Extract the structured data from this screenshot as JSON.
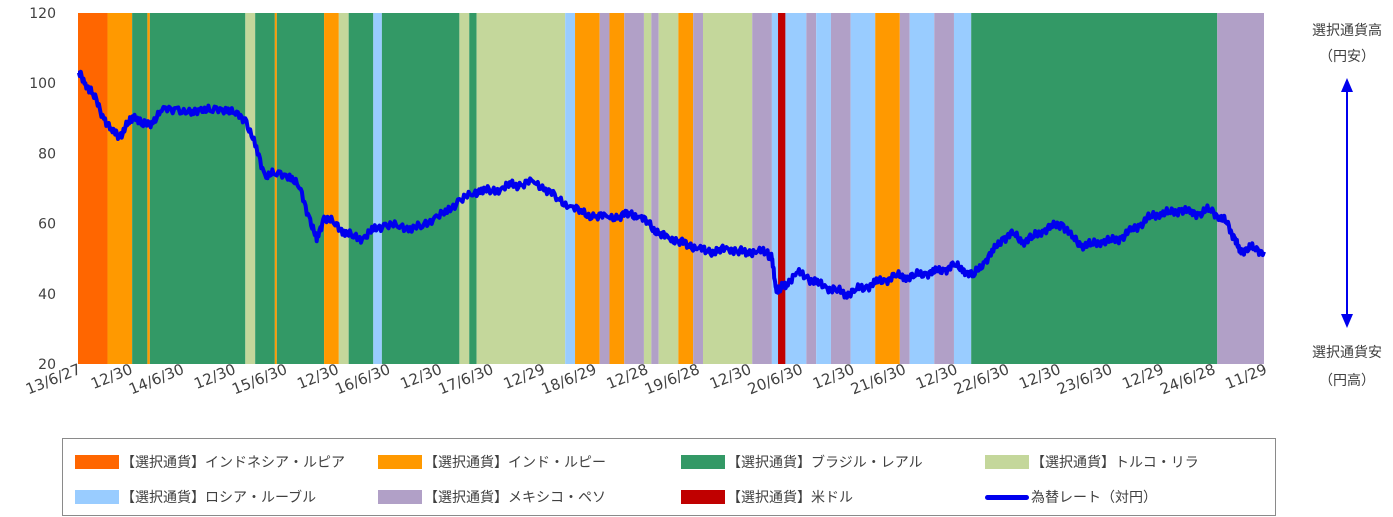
{
  "chart_data": {
    "type": "area",
    "ylim": [
      20,
      120
    ],
    "yticks": [
      20,
      40,
      60,
      80,
      100,
      120
    ],
    "x_tick_labels": [
      "13/6/27",
      "12/30",
      "14/6/30",
      "12/30",
      "15/6/30",
      "12/30",
      "16/6/30",
      "12/30",
      "17/6/30",
      "12/29",
      "18/6/29",
      "12/28",
      "19/6/28",
      "12/30",
      "20/6/30",
      "12/30",
      "21/6/30",
      "12/30",
      "22/6/30",
      "12/30",
      "23/6/30",
      "12/29",
      "24/6/28",
      "11/29"
    ],
    "right_axis": {
      "top_label": "選択通貨高",
      "top_sub": "（円安）",
      "bottom_label": "選択通貨安",
      "bottom_sub": "（円高）"
    },
    "currencies": [
      {
        "key": "idr",
        "name": "【選択通貨】インドネシア・ルピア",
        "color": "#FF6600"
      },
      {
        "key": "inr",
        "name": "【選択通貨】インド・ルピー",
        "color": "#FF9900"
      },
      {
        "key": "brl",
        "name": "【選択通貨】ブラジル・レアル",
        "color": "#339966"
      },
      {
        "key": "try",
        "name": "【選択通貨】トルコ・リラ",
        "color": "#C4D79B"
      },
      {
        "key": "rub",
        "name": "【選択通貨】ロシア・ルーブル",
        "color": "#99CCFF"
      },
      {
        "key": "mxn",
        "name": "【選択通貨】メキシコ・ペソ",
        "color": "#B1A0C7"
      },
      {
        "key": "usd",
        "name": "【選択通貨】米ドル",
        "color": "#C00000"
      }
    ],
    "line_series": {
      "name": "為替レート（対円）",
      "color": "#0000EE"
    },
    "periods": [
      [
        "idr",
        0,
        1.2
      ],
      [
        "inr",
        1.2,
        2.2
      ],
      [
        "brl",
        2.2,
        2.82
      ],
      [
        "inr",
        2.82,
        2.92
      ],
      [
        "brl",
        2.92,
        6.8
      ],
      [
        "try",
        6.8,
        7.2
      ],
      [
        "brl",
        7.2,
        8.0
      ],
      [
        "inr",
        8.0,
        8.08
      ],
      [
        "brl",
        8.08,
        10.0
      ],
      [
        "inr",
        10.0,
        10.6
      ],
      [
        "try",
        10.6,
        11.0
      ],
      [
        "brl",
        11.0,
        12.0
      ],
      [
        "rub",
        12.0,
        12.35
      ],
      [
        "brl",
        12.35,
        15.5
      ],
      [
        "try",
        15.5,
        15.9
      ],
      [
        "brl",
        15.9,
        16.2
      ],
      [
        "try",
        16.2,
        19.8
      ],
      [
        "rub",
        19.8,
        20.2
      ],
      [
        "inr",
        20.2,
        21.2
      ],
      [
        "mxn",
        21.2,
        21.6
      ],
      [
        "inr",
        21.6,
        22.2
      ],
      [
        "mxn",
        22.2,
        23.0
      ],
      [
        "try",
        23.0,
        23.3
      ],
      [
        "mxn",
        23.3,
        23.6
      ],
      [
        "try",
        23.6,
        24.4
      ],
      [
        "inr",
        24.4,
        25.0
      ],
      [
        "mxn",
        25.0,
        25.4
      ],
      [
        "try",
        25.4,
        27.4
      ],
      [
        "mxn",
        27.4,
        28.2
      ],
      [
        "rub",
        28.2,
        28.45
      ],
      [
        "usd",
        28.45,
        28.75
      ],
      [
        "rub",
        28.75,
        29.6
      ],
      [
        "mxn",
        29.6,
        30.0
      ],
      [
        "rub",
        30.0,
        30.6
      ],
      [
        "mxn",
        30.6,
        31.4
      ],
      [
        "rub",
        31.4,
        32.4
      ],
      [
        "inr",
        32.4,
        33.4
      ],
      [
        "mxn",
        33.4,
        33.8
      ],
      [
        "rub",
        33.8,
        34.8
      ],
      [
        "mxn",
        34.8,
        35.6
      ],
      [
        "rub",
        35.6,
        36.3
      ],
      [
        "brl",
        36.3,
        46.3
      ],
      [
        "mxn",
        46.3,
        48.2
      ]
    ],
    "rate_anchors": [
      [
        0,
        103
      ],
      [
        0.3,
        100
      ],
      [
        0.6,
        97
      ],
      [
        1.0,
        91
      ],
      [
        1.4,
        86
      ],
      [
        1.7,
        85
      ],
      [
        2.0,
        88
      ],
      [
        2.3,
        91
      ],
      [
        2.6,
        88
      ],
      [
        3.0,
        89
      ],
      [
        3.4,
        92
      ],
      [
        4.0,
        93
      ],
      [
        4.6,
        91
      ],
      [
        5.0,
        93
      ],
      [
        5.4,
        92
      ],
      [
        6.0,
        93
      ],
      [
        6.4,
        91
      ],
      [
        6.8,
        90
      ],
      [
        7.2,
        82
      ],
      [
        7.6,
        74
      ],
      [
        8.0,
        74
      ],
      [
        8.6,
        74
      ],
      [
        9.0,
        70
      ],
      [
        9.4,
        62
      ],
      [
        9.7,
        55
      ],
      [
        10.0,
        62
      ],
      [
        10.4,
        60
      ],
      [
        10.8,
        58
      ],
      [
        11.2,
        56
      ],
      [
        11.6,
        56
      ],
      [
        12.0,
        58
      ],
      [
        12.5,
        60
      ],
      [
        13.0,
        59
      ],
      [
        13.5,
        59
      ],
      [
        14.0,
        59
      ],
      [
        14.5,
        62
      ],
      [
        15.0,
        63
      ],
      [
        15.5,
        67
      ],
      [
        16.0,
        68
      ],
      [
        16.4,
        70
      ],
      [
        16.8,
        69
      ],
      [
        17.2,
        70
      ],
      [
        17.6,
        71
      ],
      [
        18.0,
        71
      ],
      [
        18.5,
        72
      ],
      [
        19.0,
        70
      ],
      [
        19.5,
        67
      ],
      [
        20.0,
        65
      ],
      [
        20.5,
        63
      ],
      [
        21.0,
        62
      ],
      [
        21.5,
        62
      ],
      [
        22.0,
        62
      ],
      [
        22.4,
        63
      ],
      [
        22.8,
        62
      ],
      [
        23.2,
        60
      ],
      [
        23.6,
        57
      ],
      [
        24.0,
        56
      ],
      [
        24.4,
        55
      ],
      [
        24.8,
        54
      ],
      [
        25.2,
        53
      ],
      [
        25.6,
        52
      ],
      [
        26.0,
        52
      ],
      [
        26.4,
        53
      ],
      [
        26.8,
        52
      ],
      [
        27.2,
        52
      ],
      [
        27.6,
        52
      ],
      [
        28.0,
        52
      ],
      [
        28.2,
        50
      ],
      [
        28.35,
        42
      ],
      [
        28.5,
        41
      ],
      [
        28.8,
        43
      ],
      [
        29.2,
        46
      ],
      [
        29.6,
        45
      ],
      [
        30.0,
        43
      ],
      [
        30.4,
        42
      ],
      [
        30.8,
        41
      ],
      [
        31.2,
        40
      ],
      [
        31.6,
        41
      ],
      [
        32.0,
        42
      ],
      [
        32.4,
        43
      ],
      [
        32.8,
        44
      ],
      [
        33.2,
        45
      ],
      [
        33.6,
        45
      ],
      [
        34.0,
        45
      ],
      [
        34.4,
        46
      ],
      [
        34.8,
        46
      ],
      [
        35.2,
        47
      ],
      [
        35.6,
        48
      ],
      [
        36.0,
        47
      ],
      [
        36.4,
        45
      ],
      [
        36.8,
        49
      ],
      [
        37.2,
        52
      ],
      [
        37.6,
        56
      ],
      [
        38.0,
        57
      ],
      [
        38.4,
        55
      ],
      [
        38.8,
        56
      ],
      [
        39.2,
        58
      ],
      [
        39.6,
        59
      ],
      [
        40.0,
        60
      ],
      [
        40.4,
        56
      ],
      [
        40.8,
        54
      ],
      [
        41.2,
        54
      ],
      [
        41.6,
        55
      ],
      [
        42.0,
        55
      ],
      [
        42.4,
        56
      ],
      [
        42.8,
        58
      ],
      [
        43.2,
        60
      ],
      [
        43.6,
        62
      ],
      [
        44.0,
        63
      ],
      [
        44.4,
        63
      ],
      [
        44.8,
        64
      ],
      [
        45.2,
        63
      ],
      [
        45.6,
        63
      ],
      [
        46.0,
        64
      ],
      [
        46.4,
        62
      ],
      [
        46.7,
        60
      ],
      [
        47.0,
        56
      ],
      [
        47.2,
        52
      ],
      [
        47.5,
        53
      ],
      [
        47.8,
        53
      ],
      [
        48.2,
        52
      ]
    ]
  }
}
